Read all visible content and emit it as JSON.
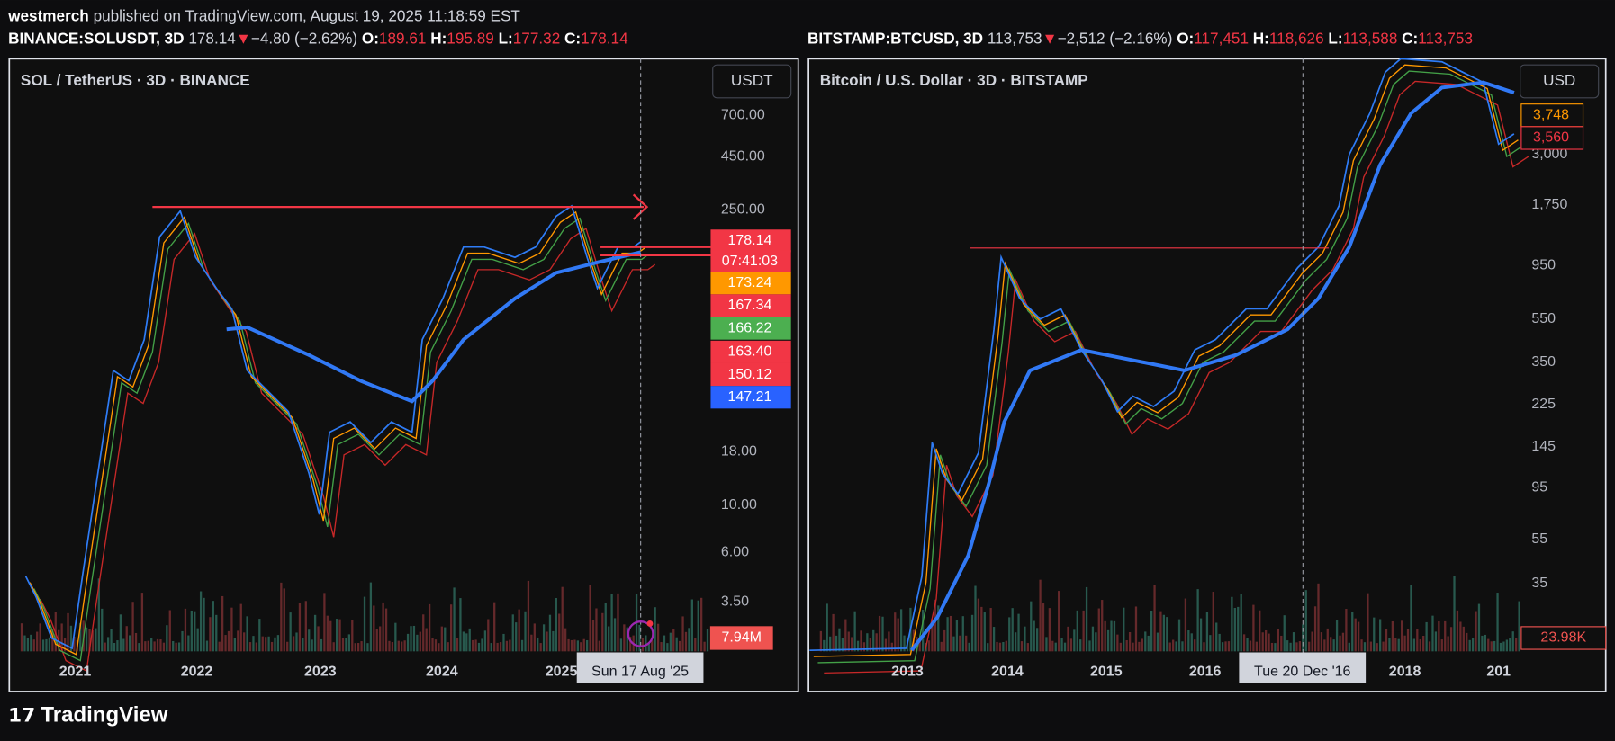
{
  "header": {
    "author": "westmerch",
    "published": "published on TradingView.com, August 19, 2025 11:18:59 EST"
  },
  "panels": [
    {
      "symbol": "BINANCE:SOLUSDT, 3D",
      "price": "178.14",
      "arrow": "▼",
      "change": "−4.80 (−2.62%)",
      "ohlc": [
        {
          "key": "O:",
          "value": "189.61"
        },
        {
          "key": "H:",
          "value": "195.89"
        },
        {
          "key": "L:",
          "value": "177.32"
        },
        {
          "key": "C:",
          "value": "178.14"
        }
      ],
      "title": "SOL / TetherUS · 3D · BINANCE",
      "currency": "USDT",
      "y_labels": [
        "700.00",
        "450.00",
        "250.00",
        "18.00",
        "10.00",
        "6.00",
        "3.50"
      ],
      "tags": [
        {
          "text": "178.14",
          "color": "#f23645"
        },
        {
          "text": "07:41:03",
          "color": "#f23645"
        },
        {
          "text": "173.24",
          "color": "#ff9800"
        },
        {
          "text": "167.34",
          "color": "#f23645"
        },
        {
          "text": "166.22",
          "color": "#4caf50"
        },
        {
          "text": "163.40",
          "color": "#f23645"
        },
        {
          "text": "150.12",
          "color": "#f23645"
        },
        {
          "text": "147.21",
          "color": "#2962ff"
        }
      ],
      "volume_tag": "7.94M",
      "x_labels": [
        "2021",
        "2022",
        "2023",
        "2024",
        "2025"
      ],
      "crosshair_date": "Sun 17 Aug '25"
    },
    {
      "symbol": "BITSTAMP:BTCUSD, 3D",
      "price": "113,753",
      "arrow": "▼",
      "change": "−2,512 (−2.16%)",
      "ohlc": [
        {
          "key": "O:",
          "value": "117,451"
        },
        {
          "key": "H:",
          "value": "118,626"
        },
        {
          "key": "L:",
          "value": "113,588"
        },
        {
          "key": "C:",
          "value": "113,753"
        }
      ],
      "title": "Bitcoin / U.S. Dollar · 3D · BITSTAMP",
      "currency": "USD",
      "y_labels": [
        "3,000",
        "1,750",
        "950",
        "550",
        "350",
        "225",
        "145",
        "95",
        "55",
        "35"
      ],
      "tags": [
        {
          "text": "3,748",
          "color": "#ff9800"
        },
        {
          "text": "3,560",
          "color": "#f23645"
        }
      ],
      "volume_tag": "23.98K",
      "x_labels": [
        "2013",
        "2014",
        "2015",
        "2016",
        "2018",
        "201"
      ],
      "crosshair_date": "Tue 20 Dec '16"
    }
  ],
  "footer": {
    "brand": "TradingView"
  }
}
